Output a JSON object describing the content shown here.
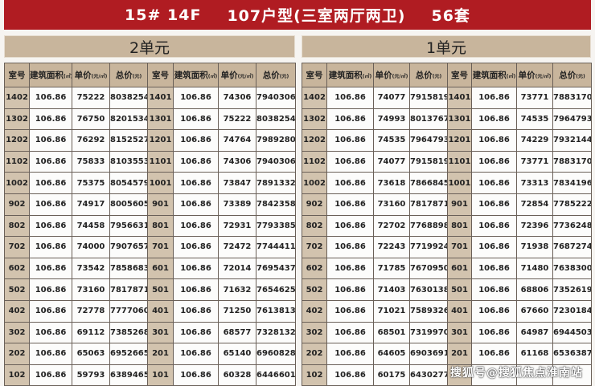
{
  "title": {
    "building": "15# 14F",
    "type": "107户型(三室两厅两卫)",
    "count": "56套"
  },
  "headers": {
    "room": "室号",
    "area": "建筑面积",
    "area_unit": "(㎡)",
    "price": "单价",
    "price_unit": "(元/㎡)",
    "total": "总价",
    "total_unit": "(元)"
  },
  "colors": {
    "title_bg": "#b01c22",
    "header_bg": "#c8b59c"
  },
  "units": [
    {
      "name": "2单元",
      "rows": [
        [
          "1402",
          "106.86",
          "75222",
          "8038254",
          "1401",
          "106.86",
          "74306",
          "7940306"
        ],
        [
          "1302",
          "106.86",
          "76750",
          "8201534",
          "1301",
          "106.86",
          "75222",
          "8038254"
        ],
        [
          "1202",
          "106.86",
          "76292",
          "8152527",
          "1201",
          "106.86",
          "74764",
          "7989280"
        ],
        [
          "1102",
          "106.86",
          "75833",
          "8103553",
          "1101",
          "106.86",
          "74306",
          "7940306"
        ],
        [
          "1002",
          "106.86",
          "75375",
          "8054579",
          "1001",
          "106.86",
          "73847",
          "7891332"
        ],
        [
          "902",
          "106.86",
          "74917",
          "8005605",
          "901",
          "106.86",
          "73389",
          "7842358"
        ],
        [
          "802",
          "106.86",
          "74458",
          "7956631",
          "801",
          "106.86",
          "72931",
          "7793385"
        ],
        [
          "702",
          "106.86",
          "74000",
          "7907657",
          "701",
          "106.86",
          "72472",
          "7744411"
        ],
        [
          "602",
          "106.86",
          "73542",
          "7858683",
          "601",
          "106.86",
          "72014",
          "7695437"
        ],
        [
          "502",
          "106.86",
          "73160",
          "7817871",
          "501",
          "106.86",
          "71632",
          "7654625"
        ],
        [
          "402",
          "106.86",
          "72778",
          "7777060",
          "401",
          "106.86",
          "71250",
          "7613813"
        ],
        [
          "302",
          "106.86",
          "69112",
          "7385268",
          "301",
          "106.86",
          "68577",
          "7328132"
        ],
        [
          "202",
          "106.86",
          "65063",
          "6952665",
          "201",
          "106.86",
          "65140",
          "6960828"
        ],
        [
          "102",
          "106.86",
          "59793",
          "6389465",
          "101",
          "106.86",
          "60328",
          "6446601"
        ]
      ]
    },
    {
      "name": "1单元",
      "rows": [
        [
          "1402",
          "106.86",
          "74077",
          "7915819",
          "1401",
          "106.86",
          "73771",
          "7883170"
        ],
        [
          "1302",
          "106.86",
          "74993",
          "8013767",
          "1301",
          "106.86",
          "74535",
          "7964793"
        ],
        [
          "1202",
          "106.86",
          "74535",
          "7964793",
          "1201",
          "106.86",
          "74229",
          "7932144"
        ],
        [
          "1102",
          "106.86",
          "74077",
          "7915819",
          "1101",
          "106.86",
          "73771",
          "7883170"
        ],
        [
          "1002",
          "106.86",
          "73618",
          "7866845",
          "1001",
          "106.86",
          "73313",
          "7834196"
        ],
        [
          "902",
          "106.86",
          "73160",
          "7817871",
          "901",
          "106.86",
          "72854",
          "7785222"
        ],
        [
          "802",
          "106.86",
          "72702",
          "7768898",
          "801",
          "106.86",
          "72396",
          "7736248"
        ],
        [
          "702",
          "106.86",
          "72243",
          "7719924",
          "701",
          "106.86",
          "71938",
          "7687274"
        ],
        [
          "602",
          "106.86",
          "71785",
          "7670950",
          "601",
          "106.86",
          "71480",
          "7638300"
        ],
        [
          "502",
          "106.86",
          "71403",
          "7630138",
          "501",
          "106.86",
          "68806",
          "7352619"
        ],
        [
          "402",
          "106.86",
          "71021",
          "7589326",
          "401",
          "106.86",
          "67660",
          "7230184"
        ],
        [
          "302",
          "106.86",
          "68501",
          "7319970",
          "301",
          "106.86",
          "64987",
          "6944503"
        ],
        [
          "202",
          "106.86",
          "64605",
          "6903691",
          "201",
          "106.86",
          "61168",
          "6536387"
        ],
        [
          "102",
          "106.86",
          "60175",
          "6430277",
          "",
          "",
          "",
          ""
        ]
      ]
    }
  ],
  "watermark": "搜狐号@搜狐焦点淮南站"
}
